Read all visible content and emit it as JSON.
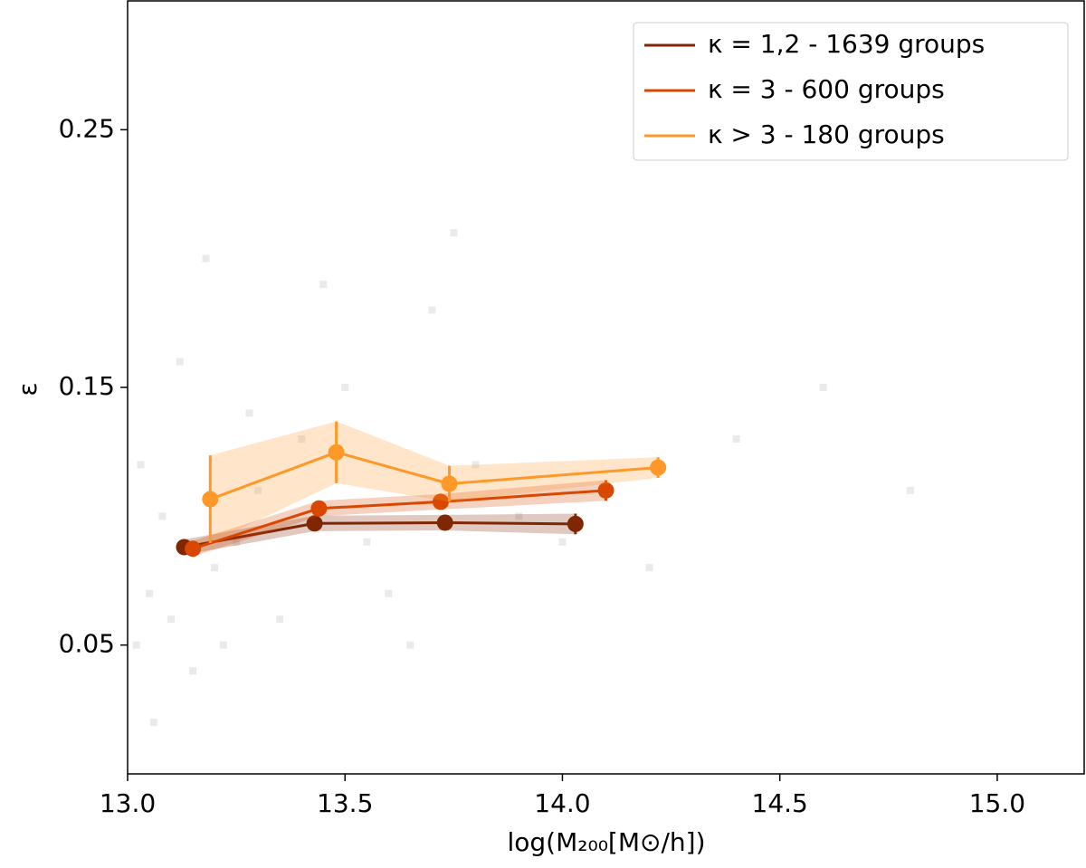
{
  "chart_data": {
    "type": "errorline",
    "xlabel": "log(M₂₀₀[M⊙/h])",
    "ylabel": "ε",
    "xlim": [
      13.0,
      15.2
    ],
    "ylim": [
      0.0,
      0.3
    ],
    "xticks": [
      {
        "value": 13.0,
        "label": "13.0"
      },
      {
        "value": 13.5,
        "label": "13.5"
      },
      {
        "value": 14.0,
        "label": "14.0"
      },
      {
        "value": 14.5,
        "label": "14.5"
      },
      {
        "value": 15.0,
        "label": "15.0"
      }
    ],
    "yticks": [
      0.05,
      0.15,
      0.25
    ],
    "legend": "upper right",
    "background": {
      "color": "#bbbbbb",
      "x": [
        13.02,
        13.05,
        13.08,
        13.1,
        13.03,
        13.15,
        13.2,
        13.25,
        13.3,
        13.35,
        13.4,
        13.5,
        13.6,
        13.7,
        13.8,
        13.9,
        14.0,
        14.2,
        14.4,
        14.6,
        14.8,
        13.06,
        13.12,
        13.18,
        13.22,
        13.28,
        13.45,
        13.55,
        13.65,
        13.75
      ],
      "y": [
        0.05,
        0.07,
        0.1,
        0.06,
        0.12,
        0.04,
        0.08,
        0.09,
        0.11,
        0.06,
        0.13,
        0.15,
        0.07,
        0.18,
        0.12,
        0.1,
        0.09,
        0.08,
        0.13,
        0.15,
        0.11,
        0.02,
        0.16,
        0.2,
        0.05,
        0.14,
        0.19,
        0.09,
        0.05,
        0.21
      ]
    },
    "series": [
      {
        "name": "κ = 1,2 - 1639 groups",
        "color": "#7f2704",
        "x": [
          13.13,
          13.43,
          13.73,
          14.03
        ],
        "values": [
          0.088,
          0.0972,
          0.0975,
          0.097
        ],
        "errors": [
          0.003,
          0.003,
          0.003,
          0.004
        ]
      },
      {
        "name": "κ = 3 - 600 groups",
        "color": "#d94801",
        "x": [
          13.15,
          13.44,
          13.72,
          14.1
        ],
        "values": [
          0.0874,
          0.103,
          0.1056,
          0.11
        ],
        "errors": [
          0.003,
          0.003,
          0.003,
          0.004
        ]
      },
      {
        "name": "κ > 3 - 180 groups",
        "color": "#fe9929",
        "x": [
          13.19,
          13.48,
          13.74,
          14.22
        ],
        "values": [
          0.1066,
          0.1248,
          0.1126,
          0.1189
        ],
        "errors": [
          0.017,
          0.012,
          0.007,
          0.004
        ]
      }
    ]
  }
}
